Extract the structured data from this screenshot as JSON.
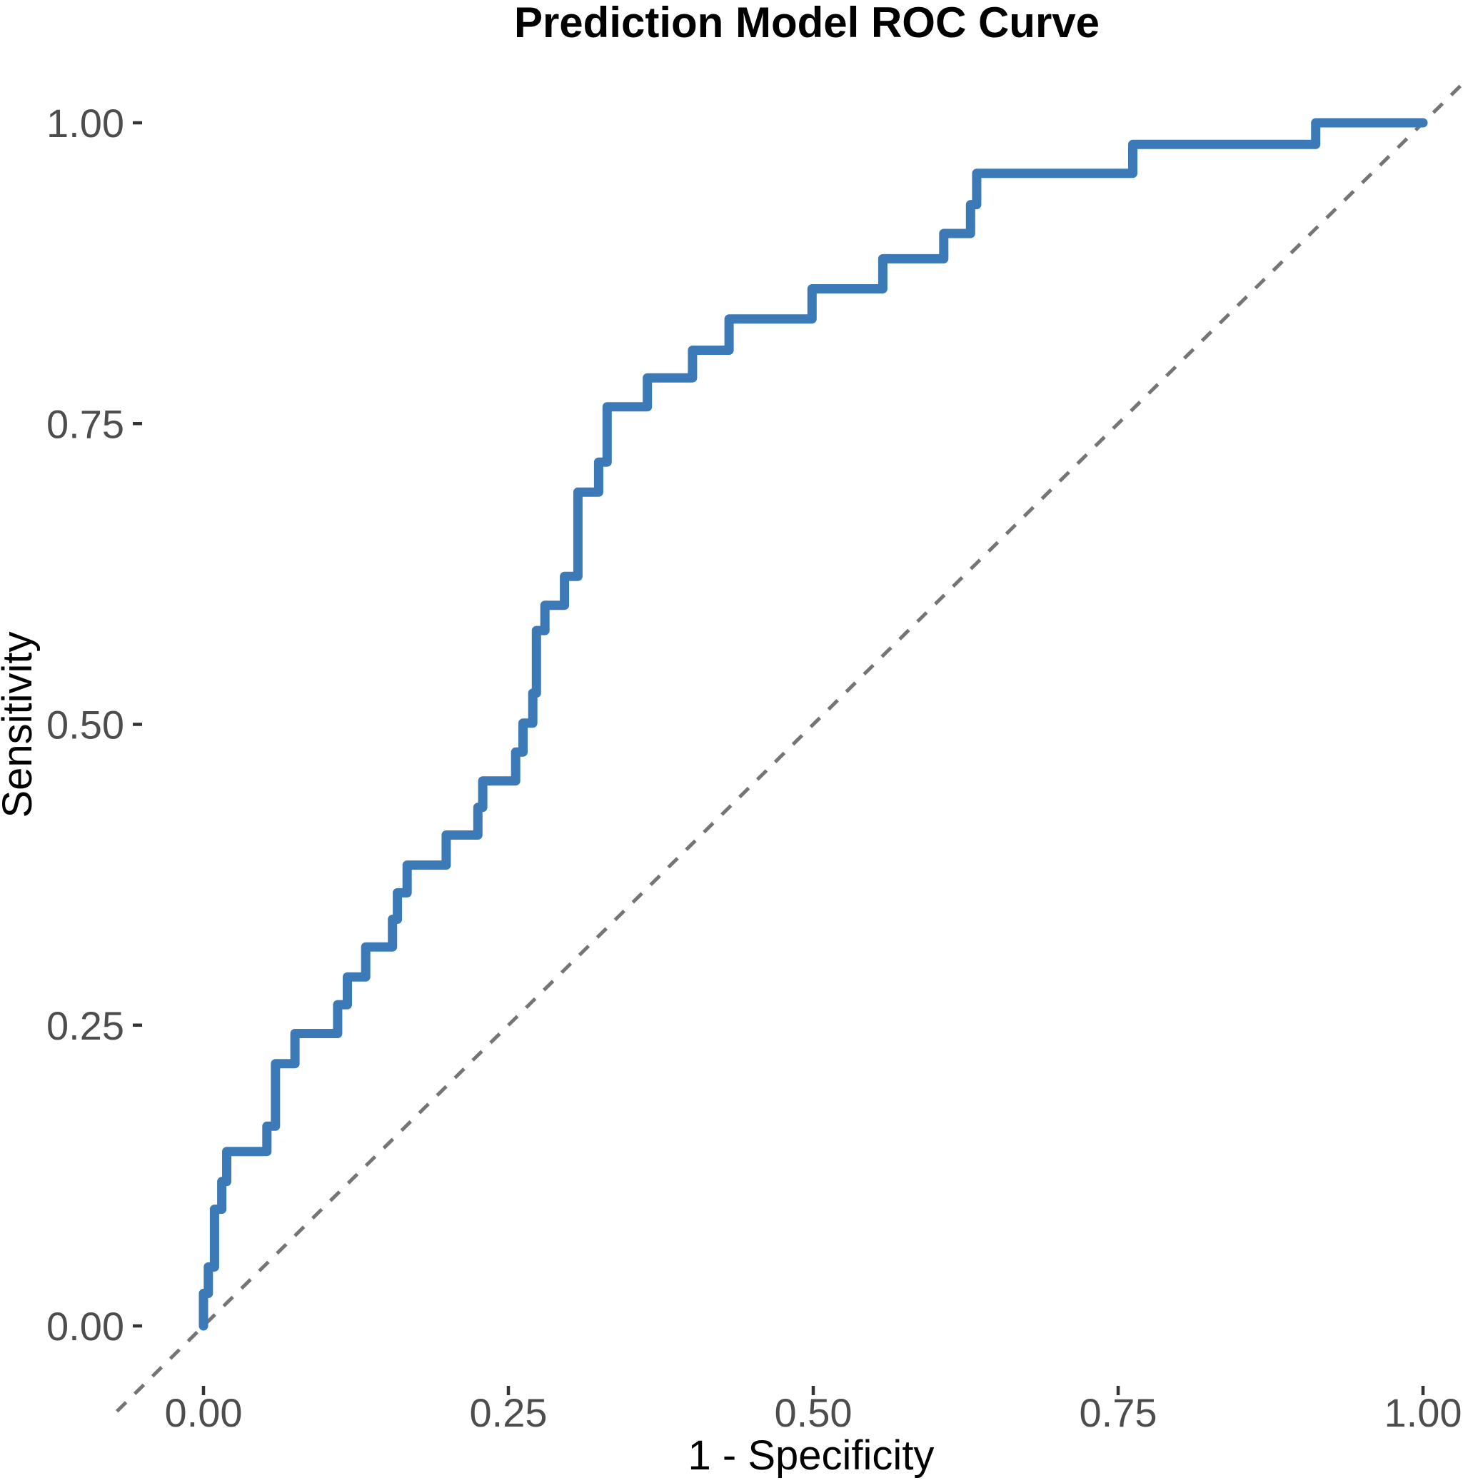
{
  "chart_data": {
    "type": "line",
    "subtype": "roc-step-curve",
    "title": "Prediction Model ROC Curve",
    "xlabel": "1 - Specificity",
    "ylabel": "Sensitivity",
    "xlim": [
      0,
      1
    ],
    "ylim": [
      0,
      1
    ],
    "grid": false,
    "legend": "none",
    "background": "#ffffff",
    "x_ticks": [
      {
        "value": 0.0,
        "label": "0.00"
      },
      {
        "value": 0.25,
        "label": "0.25"
      },
      {
        "value": 0.5,
        "label": "0.50"
      },
      {
        "value": 0.75,
        "label": "0.75"
      },
      {
        "value": 1.0,
        "label": "1.00"
      }
    ],
    "y_ticks": [
      {
        "value": 0.0,
        "label": "0.00"
      },
      {
        "value": 0.25,
        "label": "0.25"
      },
      {
        "value": 0.5,
        "label": "0.50"
      },
      {
        "value": 0.75,
        "label": "0.75"
      },
      {
        "value": 1.0,
        "label": "1.00"
      }
    ],
    "series": [
      {
        "name": "roc_curve",
        "draw": "step-vertices",
        "color": "#3b7ab6",
        "linewidth": 13,
        "points": [
          [
            0.0,
            0.0
          ],
          [
            0.0,
            0.027
          ],
          [
            0.004,
            0.027
          ],
          [
            0.004,
            0.049
          ],
          [
            0.009,
            0.049
          ],
          [
            0.009,
            0.097
          ],
          [
            0.015,
            0.097
          ],
          [
            0.015,
            0.12
          ],
          [
            0.019,
            0.12
          ],
          [
            0.019,
            0.145
          ],
          [
            0.052,
            0.145
          ],
          [
            0.052,
            0.166
          ],
          [
            0.059,
            0.166
          ],
          [
            0.059,
            0.218
          ],
          [
            0.075,
            0.218
          ],
          [
            0.075,
            0.243
          ],
          [
            0.11,
            0.243
          ],
          [
            0.11,
            0.267
          ],
          [
            0.118,
            0.267
          ],
          [
            0.118,
            0.29
          ],
          [
            0.133,
            0.29
          ],
          [
            0.133,
            0.315
          ],
          [
            0.155,
            0.315
          ],
          [
            0.155,
            0.338
          ],
          [
            0.159,
            0.338
          ],
          [
            0.159,
            0.36
          ],
          [
            0.167,
            0.36
          ],
          [
            0.167,
            0.383
          ],
          [
            0.199,
            0.383
          ],
          [
            0.199,
            0.408
          ],
          [
            0.225,
            0.408
          ],
          [
            0.225,
            0.431
          ],
          [
            0.229,
            0.431
          ],
          [
            0.229,
            0.453
          ],
          [
            0.256,
            0.453
          ],
          [
            0.256,
            0.477
          ],
          [
            0.262,
            0.477
          ],
          [
            0.262,
            0.501
          ],
          [
            0.27,
            0.501
          ],
          [
            0.27,
            0.526
          ],
          [
            0.273,
            0.526
          ],
          [
            0.273,
            0.578
          ],
          [
            0.28,
            0.578
          ],
          [
            0.28,
            0.599
          ],
          [
            0.296,
            0.599
          ],
          [
            0.296,
            0.623
          ],
          [
            0.307,
            0.623
          ],
          [
            0.307,
            0.693
          ],
          [
            0.324,
            0.693
          ],
          [
            0.324,
            0.718
          ],
          [
            0.331,
            0.718
          ],
          [
            0.331,
            0.764
          ],
          [
            0.364,
            0.764
          ],
          [
            0.364,
            0.788
          ],
          [
            0.401,
            0.788
          ],
          [
            0.401,
            0.811
          ],
          [
            0.431,
            0.811
          ],
          [
            0.431,
            0.837
          ],
          [
            0.499,
            0.837
          ],
          [
            0.499,
            0.862
          ],
          [
            0.557,
            0.862
          ],
          [
            0.557,
            0.887
          ],
          [
            0.607,
            0.887
          ],
          [
            0.607,
            0.908
          ],
          [
            0.629,
            0.908
          ],
          [
            0.629,
            0.932
          ],
          [
            0.634,
            0.932
          ],
          [
            0.634,
            0.958
          ],
          [
            0.762,
            0.958
          ],
          [
            0.762,
            0.982
          ],
          [
            0.912,
            0.982
          ],
          [
            0.912,
            1.0
          ],
          [
            1.0,
            1.0
          ]
        ]
      },
      {
        "name": "chance_reference_diagonal",
        "draw": "abline",
        "slope": 1,
        "intercept": 0,
        "color": "#757575",
        "linewidth": 5,
        "dash": [
          18,
          17
        ]
      }
    ],
    "colors": {
      "curve": "#3b7ab6",
      "reference_line": "#757575",
      "tick_label": "#4d4d4d",
      "tick_mark": "#333333",
      "title_text": "#000000"
    }
  }
}
